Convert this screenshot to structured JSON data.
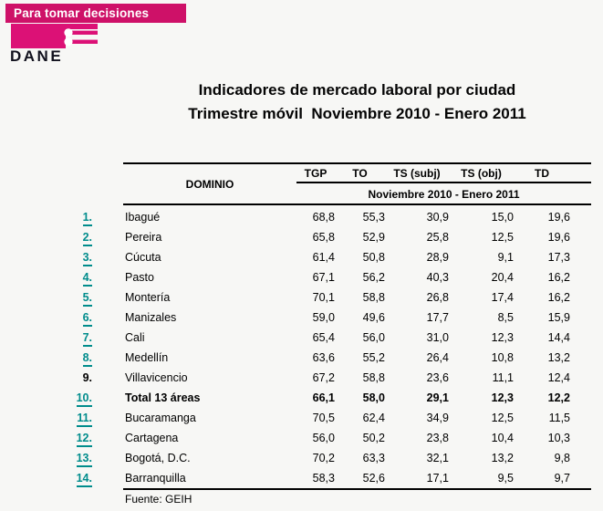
{
  "brand": {
    "banner_label": "Para tomar decisiones",
    "logo_text": "DANE",
    "magenta": "#CE1168",
    "link_teal": "#008C8C"
  },
  "title": {
    "line1": "Indicadores de mercado laboral por ciudad",
    "line2": "Trimestre móvil  Noviembre 2010 - Enero 2011"
  },
  "table": {
    "domain_header": "DOMINIO",
    "columns": [
      "TGP",
      "TO",
      "TS (subj)",
      "TS (obj)",
      "TD"
    ],
    "period_header": "Noviembre 2010 - Enero 2011",
    "rows": [
      {
        "num": "1.",
        "is_link": true,
        "city": "Ibagué",
        "bold": false,
        "values": [
          "68,8",
          "55,3",
          "30,9",
          "15,0",
          "19,6"
        ]
      },
      {
        "num": "2.",
        "is_link": true,
        "city": "Pereira",
        "bold": false,
        "values": [
          "65,8",
          "52,9",
          "25,8",
          "12,5",
          "19,6"
        ]
      },
      {
        "num": "3.",
        "is_link": true,
        "city": "Cúcuta",
        "bold": false,
        "values": [
          "61,4",
          "50,8",
          "28,9",
          "9,1",
          "17,3"
        ]
      },
      {
        "num": "4.",
        "is_link": true,
        "city": "Pasto",
        "bold": false,
        "values": [
          "67,1",
          "56,2",
          "40,3",
          "20,4",
          "16,2"
        ]
      },
      {
        "num": "5.",
        "is_link": true,
        "city": "Montería",
        "bold": false,
        "values": [
          "70,1",
          "58,8",
          "26,8",
          "17,4",
          "16,2"
        ]
      },
      {
        "num": "6.",
        "is_link": true,
        "city": "Manizales",
        "bold": false,
        "values": [
          "59,0",
          "49,6",
          "17,7",
          "8,5",
          "15,9"
        ]
      },
      {
        "num": "7.",
        "is_link": true,
        "city": "Cali",
        "bold": false,
        "values": [
          "65,4",
          "56,0",
          "31,0",
          "12,3",
          "14,4"
        ]
      },
      {
        "num": "8.",
        "is_link": true,
        "city": "Medellín",
        "bold": false,
        "values": [
          "63,6",
          "55,2",
          "26,4",
          "10,8",
          "13,2"
        ]
      },
      {
        "num": "9.",
        "is_link": false,
        "city": "Villavicencio",
        "bold": false,
        "values": [
          "67,2",
          "58,8",
          "23,6",
          "11,1",
          "12,4"
        ]
      },
      {
        "num": "10.",
        "is_link": true,
        "city": "Total 13 áreas",
        "bold": true,
        "values": [
          "66,1",
          "58,0",
          "29,1",
          "12,3",
          "12,2"
        ]
      },
      {
        "num": "11.",
        "is_link": true,
        "city": "Bucaramanga",
        "bold": false,
        "values": [
          "70,5",
          "62,4",
          "34,9",
          "12,5",
          "11,5"
        ]
      },
      {
        "num": "12.",
        "is_link": true,
        "city": "Cartagena",
        "bold": false,
        "values": [
          "56,0",
          "50,2",
          "23,8",
          "10,4",
          "10,3"
        ]
      },
      {
        "num": "13.",
        "is_link": true,
        "city": "Bogotá, D.C.",
        "bold": false,
        "values": [
          "70,2",
          "63,3",
          "32,1",
          "13,2",
          "9,8"
        ]
      },
      {
        "num": "14.",
        "is_link": true,
        "city": "Barranquilla",
        "bold": false,
        "values": [
          "58,3",
          "52,6",
          "17,1",
          "9,5",
          "9,7"
        ]
      }
    ],
    "footer": "Fuente: GEIH"
  }
}
